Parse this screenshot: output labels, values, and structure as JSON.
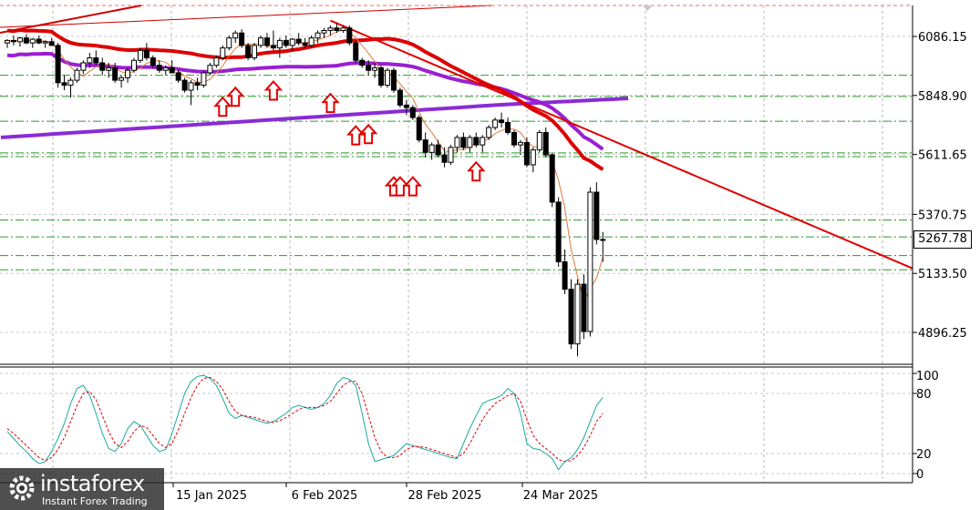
{
  "chart_data": [
    {
      "type": "candlestick",
      "title": "",
      "xlabel": "",
      "ylabel": "",
      "ylim": [
        4780,
        6240
      ],
      "y_ticks": [
        "6086.15",
        "5848.90",
        "5611.65",
        "5370.75",
        "5133.50",
        "4896.25"
      ],
      "x_ticks": [
        "15 Jan 2025",
        "6 Feb 2025",
        "28 Feb 2025",
        "24 Mar 2025"
      ],
      "current_price": "5267.78",
      "candles": [
        [
          6060,
          6075,
          6040,
          6070
        ],
        [
          6070,
          6090,
          6050,
          6065
        ],
        [
          6065,
          6085,
          6045,
          6080
        ],
        [
          6080,
          6095,
          6055,
          6060
        ],
        [
          6060,
          6080,
          6040,
          6075
        ],
        [
          6075,
          6090,
          6055,
          6060
        ],
        [
          6060,
          6070,
          6040,
          6065
        ],
        [
          6065,
          6080,
          6050,
          6050
        ],
        [
          6050,
          6060,
          5880,
          5900
        ],
        [
          5900,
          5930,
          5870,
          5890
        ],
        [
          5890,
          5920,
          5840,
          5910
        ],
        [
          5910,
          5960,
          5900,
          5950
        ],
        [
          5950,
          5990,
          5935,
          5980
        ],
        [
          5980,
          6020,
          5960,
          6000
        ],
        [
          6000,
          6030,
          5970,
          5980
        ],
        [
          5980,
          6000,
          5930,
          5950
        ],
        [
          5950,
          5980,
          5920,
          5960
        ],
        [
          5960,
          5980,
          5900,
          5910
        ],
        [
          5910,
          5930,
          5880,
          5920
        ],
        [
          5920,
          5960,
          5900,
          5950
        ],
        [
          5950,
          6000,
          5940,
          5990
        ],
        [
          5990,
          6040,
          5980,
          6030
        ],
        [
          6030,
          6060,
          5990,
          6000
        ],
        [
          6000,
          6010,
          5960,
          5970
        ],
        [
          5970,
          5990,
          5940,
          5950
        ],
        [
          5950,
          5970,
          5930,
          5960
        ],
        [
          5960,
          5990,
          5940,
          5940
        ],
        [
          5940,
          5950,
          5900,
          5910
        ],
        [
          5910,
          5920,
          5860,
          5870
        ],
        [
          5870,
          5910,
          5810,
          5900
        ],
        [
          5900,
          5920,
          5870,
          5890
        ],
        [
          5890,
          5950,
          5880,
          5940
        ],
        [
          5940,
          5980,
          5930,
          5970
        ],
        [
          5970,
          6010,
          5960,
          6000
        ],
        [
          6000,
          6050,
          5990,
          6040
        ],
        [
          6040,
          6090,
          6030,
          6080
        ],
        [
          6080,
          6110,
          6060,
          6100
        ],
        [
          6100,
          6115,
          6040,
          6050
        ],
        [
          6050,
          6060,
          5990,
          6000
        ],
        [
          6000,
          6060,
          5990,
          6050
        ],
        [
          6050,
          6090,
          6040,
          6080
        ],
        [
          6080,
          6100,
          6040,
          6050
        ],
        [
          6050,
          6110,
          6030,
          6040
        ],
        [
          6040,
          6080,
          6000,
          6070
        ],
        [
          6070,
          6090,
          6040,
          6050
        ],
        [
          6050,
          6080,
          6030,
          6075
        ],
        [
          6075,
          6100,
          6050,
          6060
        ],
        [
          6060,
          6080,
          6040,
          6050
        ],
        [
          6050,
          6090,
          6040,
          6080
        ],
        [
          6080,
          6110,
          6060,
          6100
        ],
        [
          6100,
          6120,
          6080,
          6110
        ],
        [
          6110,
          6130,
          6090,
          6120
        ],
        [
          6120,
          6140,
          6100,
          6110
        ],
        [
          6110,
          6130,
          6100,
          6120
        ],
        [
          6120,
          6130,
          6050,
          6060
        ],
        [
          6060,
          6070,
          5980,
          5990
        ],
        [
          5990,
          6000,
          5960,
          5970
        ],
        [
          5970,
          5990,
          5930,
          5950
        ],
        [
          5950,
          5980,
          5920,
          5960
        ],
        [
          5960,
          5970,
          5880,
          5890
        ],
        [
          5890,
          5960,
          5880,
          5950
        ],
        [
          5950,
          5960,
          5860,
          5870
        ],
        [
          5870,
          5880,
          5800,
          5810
        ],
        [
          5810,
          5830,
          5770,
          5800
        ],
        [
          5800,
          5810,
          5750,
          5760
        ],
        [
          5760,
          5770,
          5660,
          5670
        ],
        [
          5670,
          5700,
          5600,
          5620
        ],
        [
          5620,
          5660,
          5590,
          5650
        ],
        [
          5650,
          5670,
          5600,
          5610
        ],
        [
          5610,
          5640,
          5560,
          5580
        ],
        [
          5580,
          5650,
          5570,
          5640
        ],
        [
          5640,
          5690,
          5620,
          5680
        ],
        [
          5680,
          5700,
          5630,
          5640
        ],
        [
          5640,
          5690,
          5620,
          5680
        ],
        [
          5680,
          5700,
          5640,
          5650
        ],
        [
          5650,
          5690,
          5620,
          5680
        ],
        [
          5680,
          5730,
          5670,
          5720
        ],
        [
          5720,
          5760,
          5710,
          5750
        ],
        [
          5750,
          5780,
          5720,
          5740
        ],
        [
          5740,
          5760,
          5690,
          5700
        ],
        [
          5700,
          5710,
          5640,
          5650
        ],
        [
          5650,
          5670,
          5610,
          5660
        ],
        [
          5660,
          5680,
          5560,
          5570
        ],
        [
          5570,
          5640,
          5540,
          5630
        ],
        [
          5630,
          5710,
          5620,
          5700
        ],
        [
          5700,
          5720,
          5600,
          5610
        ],
        [
          5610,
          5620,
          5400,
          5420
        ],
        [
          5420,
          5440,
          5160,
          5180
        ],
        [
          5180,
          5230,
          5050,
          5070
        ],
        [
          5070,
          5110,
          4830,
          4850
        ],
        [
          4850,
          5110,
          4800,
          5090
        ],
        [
          5090,
          5130,
          4870,
          4900
        ],
        [
          4900,
          5480,
          4880,
          5460
        ],
        [
          5460,
          5500,
          5250,
          5270
        ],
        [
          5270,
          5300,
          5180,
          5268
        ]
      ],
      "series": [
        {
          "kind": "sma-fast",
          "color": "#e07a3a"
        },
        {
          "kind": "sma-mid",
          "color": "#dd0000"
        },
        {
          "kind": "sma-slow",
          "color": "#9a1fd1"
        },
        {
          "kind": "sma-long",
          "color": "#8a2bd6"
        }
      ],
      "horizontal_levels": [
        5930,
        5845,
        5745,
        5618,
        5603,
        5348,
        5280,
        5205,
        5148
      ],
      "trendline": {
        "from": [
          51,
          6150
        ],
        "to": [
          140,
          5185
        ],
        "color": "#e00000"
      },
      "upper_trendline": {
        "color": "#cc0000"
      },
      "up_arrows": [
        [
          34,
          5840
        ],
        [
          36,
          5880
        ],
        [
          42,
          5905
        ],
        [
          51,
          5855
        ],
        [
          55,
          5725
        ],
        [
          57,
          5730
        ],
        [
          61,
          5520
        ],
        [
          62,
          5520
        ],
        [
          64,
          5520
        ],
        [
          74,
          5580
        ]
      ],
      "arrow_color": "#e00000"
    },
    {
      "type": "line",
      "title": "",
      "xlabel": "",
      "ylabel": "",
      "ylim": [
        -5,
        110
      ],
      "y_ticks": [
        "100",
        "80",
        "20",
        "0"
      ],
      "series": [
        {
          "kind": "main",
          "color": "#1aaa9e",
          "values": [
            42,
            35,
            28,
            22,
            15,
            10,
            12,
            22,
            35,
            50,
            70,
            85,
            88,
            78,
            60,
            40,
            25,
            22,
            30,
            45,
            52,
            48,
            38,
            28,
            22,
            24,
            40,
            60,
            80,
            92,
            97,
            98,
            95,
            88,
            75,
            60,
            55,
            58,
            56,
            54,
            52,
            50,
            52,
            56,
            60,
            66,
            68,
            66,
            64,
            66,
            70,
            78,
            90,
            96,
            94,
            88,
            60,
            30,
            12,
            14,
            16,
            18,
            24,
            30,
            28,
            26,
            24,
            22,
            20,
            18,
            16,
            15,
            30,
            45,
            58,
            70,
            73,
            75,
            78,
            85,
            80,
            60,
            30,
            25,
            24,
            20,
            15,
            4,
            12,
            16,
            24,
            36,
            52,
            68,
            76
          ]
        },
        {
          "kind": "signal",
          "color": "#e00000",
          "values": [
            45,
            40,
            34,
            28,
            22,
            16,
            13,
            16,
            24,
            36,
            52,
            68,
            80,
            82,
            74,
            58,
            42,
            30,
            26,
            32,
            42,
            48,
            46,
            38,
            30,
            26,
            30,
            44,
            60,
            76,
            88,
            95,
            96,
            92,
            84,
            72,
            62,
            58,
            57,
            56,
            54,
            52,
            51,
            53,
            56,
            60,
            64,
            66,
            66,
            66,
            68,
            72,
            80,
            88,
            92,
            92,
            80,
            58,
            36,
            22,
            16,
            16,
            18,
            24,
            27,
            27,
            26,
            24,
            22,
            20,
            18,
            16,
            20,
            30,
            42,
            54,
            63,
            70,
            74,
            78,
            80,
            72,
            54,
            38,
            30,
            25,
            20,
            14,
            12,
            13,
            18,
            26,
            38,
            52,
            60
          ]
        }
      ]
    }
  ],
  "logo": {
    "name": "instaforex",
    "tagline": "Instant Forex Trading"
  }
}
